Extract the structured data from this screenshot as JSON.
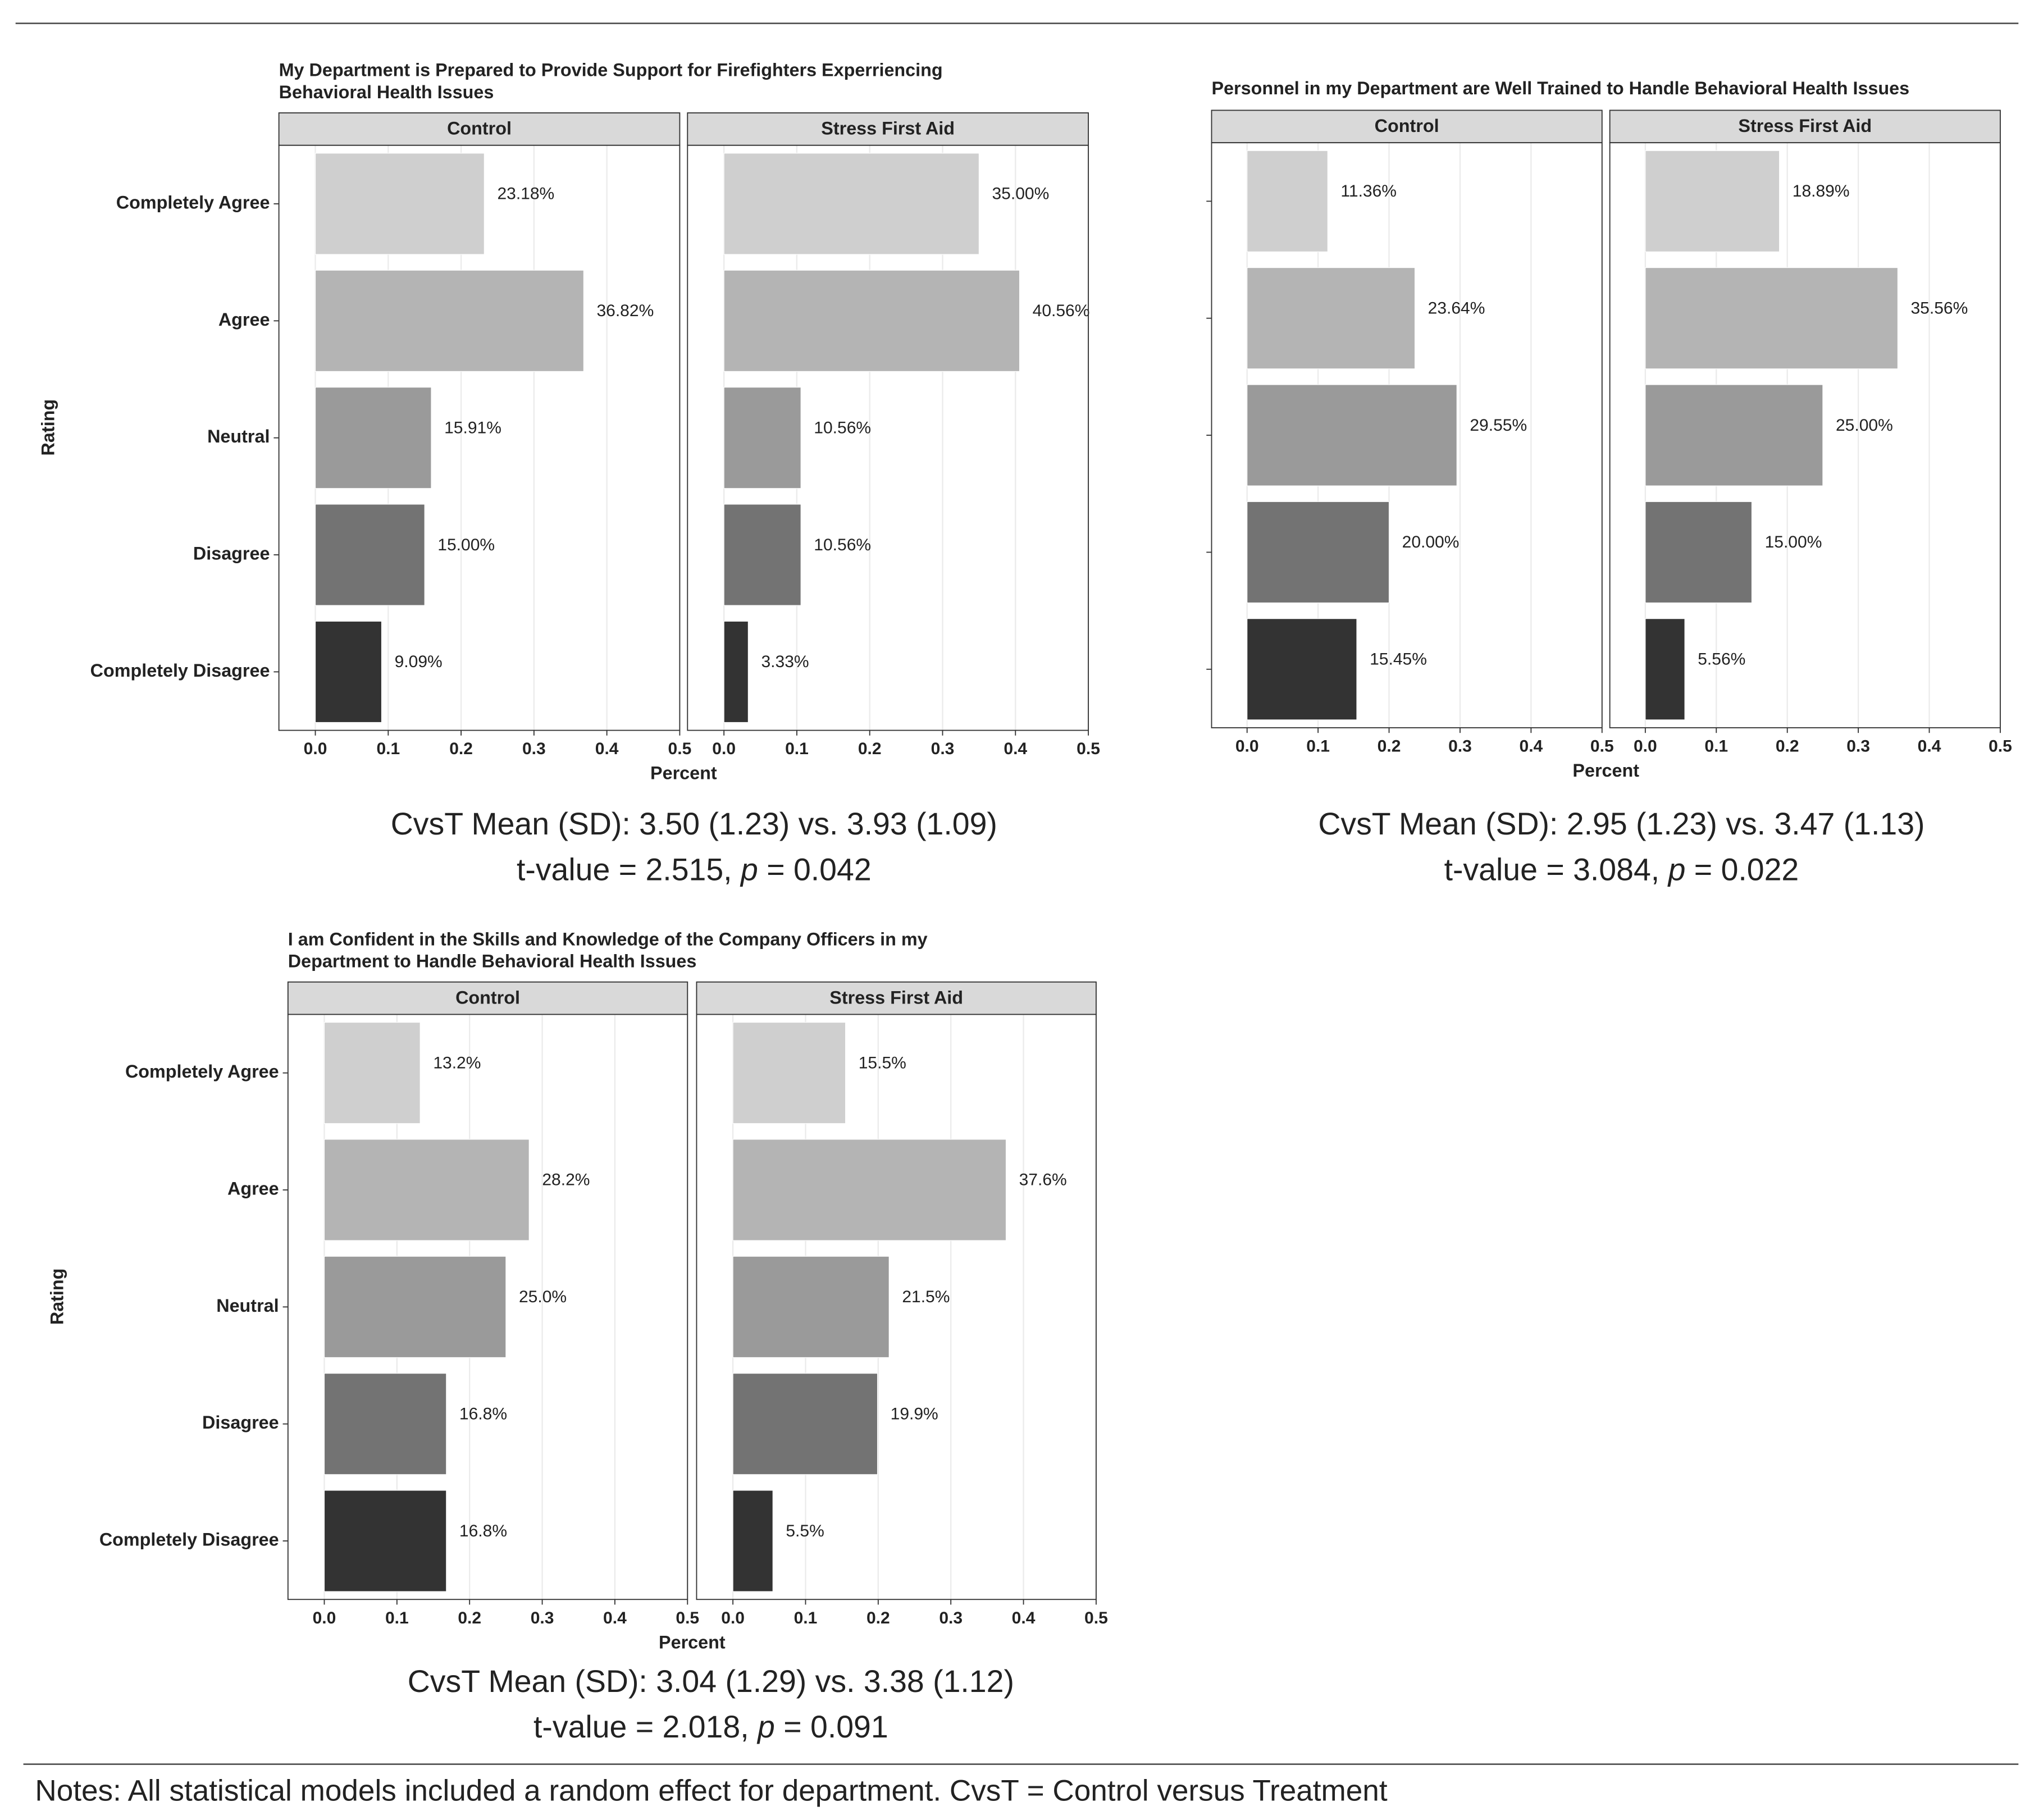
{
  "chart_data": [
    {
      "type": "bar",
      "orientation": "horizontal",
      "title": [
        "My Department is Prepared to Provide Support for Firefighters Experriencing",
        "Behavioral Health Issues"
      ],
      "categories": [
        "Completely Agree",
        "Agree",
        "Neutral",
        "Disagree",
        "Completely Disagree"
      ],
      "colors": [
        "#cfcfcf",
        "#b4b4b4",
        "#9a9a9a",
        "#737373",
        "#333333"
      ],
      "series": [
        {
          "name": "Control",
          "values": [
            0.2318,
            0.3682,
            0.1591,
            0.15,
            0.0909
          ],
          "value_labels": [
            "23.18%",
            "36.82%",
            "15.91%",
            "15.00%",
            "9.09%"
          ]
        },
        {
          "name": "Stress First Aid",
          "values": [
            0.35,
            0.4056,
            0.1056,
            0.1056,
            0.0333
          ],
          "value_labels": [
            "35.00%",
            "40.56%",
            "10.56%",
            "10.56%",
            "3.33%"
          ]
        }
      ],
      "xlabel": "Percent",
      "ylabel": "Rating",
      "xlim": [
        -0.05,
        0.5
      ],
      "xticks": [
        {
          "value": 0,
          "label": "0.0"
        },
        0.1,
        0.2,
        0.3,
        0.4,
        0.5
      ],
      "grid": true,
      "stats": [
        "CvsT Mean (SD): 3.50 (1.23) vs. 3.93 (1.09)",
        [
          "t-value = 2.515, ",
          "p",
          " = 0.042"
        ]
      ]
    },
    {
      "type": "bar",
      "orientation": "horizontal",
      "title": [
        "Personnel in my Department are Well Trained to Handle Behavioral Health Issues"
      ],
      "categories": [
        null,
        null,
        null,
        null,
        null
      ],
      "colors": [
        "#cfcfcf",
        "#b4b4b4",
        "#9a9a9a",
        "#737373",
        "#333333"
      ],
      "series": [
        {
          "name": "Control",
          "values": [
            0.1136,
            0.2364,
            0.2955,
            0.2,
            0.1545
          ],
          "value_labels": [
            "11.36%",
            "23.64%",
            "29.55%",
            "20.00%",
            "15.45%"
          ]
        },
        {
          "name": "Stress First Aid",
          "values": [
            0.1889,
            0.3556,
            0.25,
            0.15,
            0.0556
          ],
          "value_labels": [
            "18.89%",
            "35.56%",
            "25.00%",
            "15.00%",
            "5.56%"
          ]
        }
      ],
      "xlabel": "Percent",
      "xlim": [
        -0.05,
        0.5
      ],
      "xticks": [
        {
          "value": 0,
          "label": "0.0"
        },
        0.1,
        0.2,
        0.3,
        0.4,
        0.5
      ],
      "grid": true,
      "stats": [
        "CvsT Mean (SD): 2.95 (1.23) vs. 3.47 (1.13)",
        [
          "t-value = 3.084, ",
          "p",
          " = 0.022"
        ]
      ]
    },
    {
      "type": "bar",
      "orientation": "horizontal",
      "title": [
        "I am Confident in the Skills and Knowledge of the Company Officers in my",
        "Department to Handle Behavioral Health Issues"
      ],
      "categories": [
        "Completely Agree",
        "Agree",
        "Neutral",
        "Disagree",
        "Completely Disagree"
      ],
      "colors": [
        "#cfcfcf",
        "#b4b4b4",
        "#9a9a9a",
        "#737373",
        "#333333"
      ],
      "series": [
        {
          "name": "Control",
          "values": [
            0.132,
            0.282,
            0.25,
            0.168,
            0.168
          ],
          "value_labels": [
            "13.2%",
            "28.2%",
            "25.0%",
            "16.8%",
            "16.8%"
          ]
        },
        {
          "name": "Stress First Aid",
          "values": [
            0.155,
            0.376,
            0.215,
            0.199,
            0.055
          ],
          "value_labels": [
            "15.5%",
            "37.6%",
            "21.5%",
            "19.9%",
            "5.5%"
          ]
        }
      ],
      "xlabel": "Percent",
      "ylabel": "Rating",
      "xlim": [
        -0.05,
        0.5
      ],
      "xticks": [
        {
          "value": 0,
          "label": "0.0"
        },
        0.1,
        0.2,
        0.3,
        0.4,
        0.5
      ],
      "grid": true,
      "stats": [
        "CvsT Mean (SD): 3.04 (1.29) vs. 3.38 (1.12)",
        [
          "t-value = 2.018, ",
          "p",
          " = 0.091"
        ]
      ]
    }
  ],
  "notes": "Notes: All statistical models included a random effect for department. CvsT = Control versus Treatment"
}
